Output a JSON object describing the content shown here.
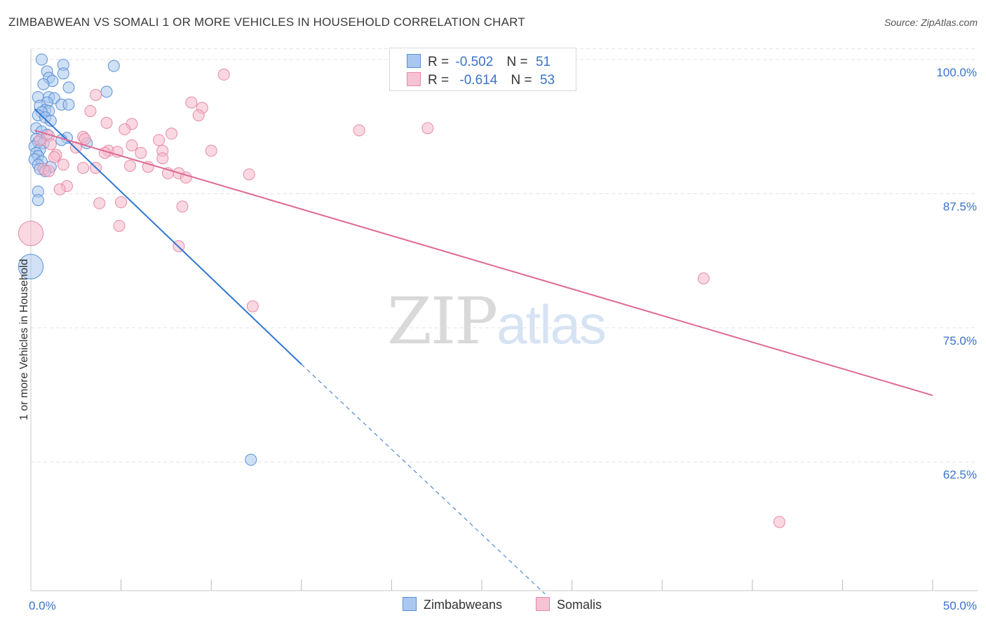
{
  "title": "ZIMBABWEAN VS SOMALI 1 OR MORE VEHICLES IN HOUSEHOLD CORRELATION CHART",
  "source": "Source: ZipAtlas.com",
  "watermark": {
    "zip": "ZIP",
    "atlas": "atlas"
  },
  "legend": {
    "rows": [
      {
        "r_label": "R =",
        "r_value": "-0.502",
        "n_label": "N =",
        "n_value": "51"
      },
      {
        "r_label": "R =",
        "r_value": "-0.614",
        "n_label": "N =",
        "n_value": "53"
      }
    ]
  },
  "bottom_legend": [
    "Zimbabweans",
    "Somalis"
  ],
  "colors": {
    "blue_fill": "#aac8ef",
    "blue_stroke": "#5a8fd6",
    "blue_line": "#2f76d2",
    "pink_fill": "#f5b8cb",
    "pink_stroke": "#e58aa7",
    "pink_line": "#e06a93",
    "axis_text": "#3a73c9",
    "grid": "#e3e3e3"
  },
  "chart_data": {
    "type": "scatter",
    "title": "ZIMBABWEAN VS SOMALI 1 OR MORE VEHICLES IN HOUSEHOLD CORRELATION CHART",
    "xlabel": "",
    "ylabel": "1 or more Vehicles in Household",
    "xlim": [
      0,
      50
    ],
    "ylim": [
      50.5,
      101.5
    ],
    "x_tick_labels": [
      {
        "v": 0,
        "t": "0.0%"
      },
      {
        "v": 50,
        "t": "50.0%"
      }
    ],
    "x_minor_ticks": [
      5,
      10,
      15,
      20,
      25,
      30,
      35,
      40,
      45,
      50
    ],
    "y_ticks": [
      {
        "v": 100,
        "t": "100.0%"
      },
      {
        "v": 87.5,
        "t": "87.5%"
      },
      {
        "v": 75,
        "t": "75.0%"
      },
      {
        "v": 62.5,
        "t": "62.5%"
      }
    ],
    "series": [
      {
        "name": "Zimbabweans",
        "r": -0.502,
        "n": 51,
        "trend": {
          "x0": 0.2,
          "y0": 95.4,
          "x1": 15.0,
          "y1": 71.6,
          "dash_x1": 28.5,
          "dash_y1": 50.2
        },
        "points": [
          [
            0.6,
            100.0,
            1
          ],
          [
            1.8,
            99.5,
            1
          ],
          [
            4.6,
            99.4,
            1
          ],
          [
            0.9,
            98.9,
            1
          ],
          [
            1.8,
            98.7,
            1
          ],
          [
            1.0,
            98.3,
            1
          ],
          [
            1.2,
            98.0,
            1
          ],
          [
            0.7,
            97.7,
            1
          ],
          [
            2.1,
            97.4,
            1
          ],
          [
            4.2,
            97.0,
            1
          ],
          [
            0.4,
            96.5,
            1
          ],
          [
            1.0,
            96.5,
            1
          ],
          [
            1.3,
            96.4,
            1
          ],
          [
            0.9,
            96.0,
            1
          ],
          [
            1.7,
            95.8,
            1
          ],
          [
            2.1,
            95.8,
            1
          ],
          [
            0.5,
            95.7,
            1
          ],
          [
            0.8,
            95.3,
            1
          ],
          [
            1.0,
            95.2,
            1
          ],
          [
            0.6,
            95.1,
            1
          ],
          [
            0.4,
            94.8,
            1
          ],
          [
            0.8,
            94.6,
            1
          ],
          [
            1.1,
            94.3,
            1
          ],
          [
            0.3,
            93.6,
            1
          ],
          [
            0.6,
            93.3,
            1
          ],
          [
            0.9,
            93.0,
            1
          ],
          [
            2.0,
            92.7,
            1
          ],
          [
            0.3,
            92.6,
            1
          ],
          [
            1.7,
            92.5,
            1
          ],
          [
            0.4,
            92.3,
            1
          ],
          [
            0.7,
            92.2,
            1
          ],
          [
            3.1,
            92.2,
            1
          ],
          [
            0.2,
            91.9,
            1
          ],
          [
            0.5,
            91.6,
            1
          ],
          [
            0.3,
            91.3,
            1
          ],
          [
            0.4,
            91.0,
            1
          ],
          [
            0.2,
            90.7,
            1
          ],
          [
            0.6,
            90.5,
            1
          ],
          [
            0.4,
            90.2,
            1
          ],
          [
            1.1,
            90.0,
            1
          ],
          [
            0.5,
            89.8,
            1
          ],
          [
            0.8,
            89.6,
            1
          ],
          [
            0.4,
            87.7,
            1
          ],
          [
            0.4,
            86.9,
            1
          ],
          [
            0.0,
            80.7,
            2.2
          ],
          [
            12.2,
            62.7,
            1
          ]
        ]
      },
      {
        "name": "Somalis",
        "r": -0.614,
        "n": 53,
        "trend": {
          "x0": 0.2,
          "y0": 93.4,
          "x1": 50.0,
          "y1": 68.7
        },
        "points": [
          [
            10.7,
            98.6,
            1
          ],
          [
            3.6,
            96.7,
            1
          ],
          [
            8.9,
            96.0,
            1
          ],
          [
            9.5,
            95.5,
            1
          ],
          [
            3.3,
            95.2,
            1
          ],
          [
            9.3,
            94.8,
            1
          ],
          [
            4.2,
            94.1,
            1
          ],
          [
            5.6,
            94.0,
            1
          ],
          [
            5.2,
            93.5,
            1
          ],
          [
            18.2,
            93.4,
            1
          ],
          [
            22.0,
            93.6,
            1
          ],
          [
            7.8,
            93.1,
            1
          ],
          [
            1.0,
            92.9,
            1
          ],
          [
            2.9,
            92.8,
            1
          ],
          [
            3.0,
            92.6,
            1
          ],
          [
            0.5,
            92.5,
            1
          ],
          [
            7.1,
            92.5,
            1
          ],
          [
            1.1,
            92.1,
            1
          ],
          [
            5.6,
            92.0,
            1
          ],
          [
            2.5,
            91.8,
            1
          ],
          [
            4.3,
            91.5,
            1
          ],
          [
            7.3,
            91.5,
            1
          ],
          [
            4.8,
            91.4,
            1
          ],
          [
            10.0,
            91.5,
            1
          ],
          [
            4.1,
            91.3,
            1
          ],
          [
            6.1,
            91.3,
            1
          ],
          [
            1.4,
            91.1,
            1
          ],
          [
            1.3,
            90.9,
            1
          ],
          [
            7.3,
            90.8,
            1
          ],
          [
            1.8,
            90.2,
            1
          ],
          [
            5.5,
            90.1,
            1
          ],
          [
            6.5,
            90.0,
            1
          ],
          [
            2.9,
            89.9,
            1
          ],
          [
            3.6,
            89.9,
            1
          ],
          [
            0.7,
            89.8,
            1
          ],
          [
            1.0,
            89.6,
            1
          ],
          [
            7.6,
            89.4,
            1
          ],
          [
            8.2,
            89.4,
            1
          ],
          [
            12.1,
            89.3,
            1
          ],
          [
            8.6,
            89.0,
            1
          ],
          [
            2.0,
            88.2,
            1
          ],
          [
            1.6,
            87.9,
            1
          ],
          [
            3.8,
            86.6,
            1
          ],
          [
            5.0,
            86.7,
            1
          ],
          [
            8.4,
            86.3,
            1
          ],
          [
            4.9,
            84.5,
            1
          ],
          [
            0.0,
            83.8,
            2.2
          ],
          [
            8.2,
            82.6,
            1
          ],
          [
            12.3,
            77.0,
            1
          ],
          [
            37.3,
            79.6,
            1
          ],
          [
            41.5,
            56.9,
            1
          ]
        ]
      }
    ]
  }
}
